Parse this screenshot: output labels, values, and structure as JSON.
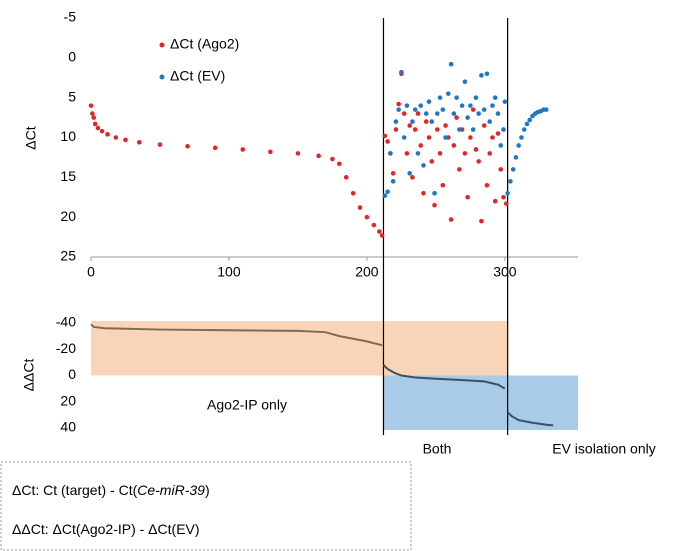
{
  "chart_data": [
    {
      "type": "scatter",
      "y_label": "ΔCt",
      "xlim": [
        0,
        353
      ],
      "ylim": [
        -5,
        25
      ],
      "y_inverted": true,
      "xticks": [
        0,
        100,
        200,
        300
      ],
      "yticks": [
        -5,
        0,
        5,
        10,
        15,
        20,
        25
      ],
      "dividers": [
        212,
        302
      ],
      "series": [
        {
          "name": "ΔCt (Ago2)",
          "color": "#e3242b",
          "x": [
            0,
            1,
            2,
            3,
            5,
            8,
            12,
            18,
            25,
            35,
            50,
            70,
            90,
            110,
            130,
            150,
            165,
            175,
            180,
            185,
            190,
            195,
            200,
            205,
            209,
            211,
            213,
            215,
            217,
            219,
            221,
            223,
            225,
            227,
            229,
            231,
            233,
            235,
            237,
            239,
            241,
            243,
            245,
            247,
            249,
            251,
            253,
            255,
            257,
            259,
            261,
            263,
            265,
            267,
            269,
            271,
            273,
            275,
            277,
            279,
            281,
            283,
            285,
            287,
            289,
            291,
            293,
            295,
            297,
            299,
            301
          ],
          "values": [
            6,
            7,
            7.5,
            8.3,
            8.8,
            9.2,
            9.6,
            10,
            10.3,
            10.6,
            10.9,
            11.1,
            11.3,
            11.5,
            11.8,
            12,
            12.3,
            12.7,
            13.3,
            15,
            17,
            18.8,
            20,
            21,
            21.8,
            22.3,
            9.8,
            10.5,
            12,
            14.5,
            9,
            5.8,
            2,
            7,
            12,
            8.5,
            15,
            9,
            7,
            11,
            17,
            8,
            10,
            13,
            18.5,
            9,
            12,
            16,
            8.5,
            10,
            20.3,
            11,
            7.5,
            14,
            9,
            12,
            17.5,
            10,
            6.5,
            11.5,
            13,
            20.5,
            8.5,
            16,
            12,
            10,
            18,
            9.5,
            14,
            17.5,
            18.3
          ]
        },
        {
          "name": "ΔCt (EV)",
          "color": "#1f77c4",
          "x": [
            213,
            215,
            217,
            219,
            221,
            223,
            225,
            227,
            229,
            231,
            233,
            235,
            237,
            239,
            241,
            243,
            245,
            247,
            249,
            251,
            253,
            255,
            257,
            259,
            261,
            263,
            265,
            267,
            269,
            271,
            273,
            275,
            277,
            279,
            281,
            283,
            285,
            287,
            289,
            291,
            293,
            295,
            297,
            299,
            300,
            302,
            304,
            306,
            308,
            310,
            312,
            314,
            316,
            318,
            320,
            322,
            324,
            326,
            328,
            330
          ],
          "values": [
            17.3,
            16.8,
            12,
            15.5,
            8,
            6.5,
            1.8,
            10,
            6,
            14.5,
            8,
            6.5,
            12,
            6,
            13.5,
            7,
            5.5,
            8,
            17,
            7,
            5,
            6.5,
            10,
            4.5,
            0.8,
            7,
            5,
            9,
            6,
            3,
            7.5,
            6,
            9,
            5,
            7,
            2.2,
            6.5,
            2,
            8,
            6,
            5,
            7,
            11,
            9,
            5.5,
            17,
            15.5,
            14,
            12.5,
            11,
            10,
            9,
            8.3,
            7.8,
            7.3,
            7,
            6.8,
            6.7,
            6.5,
            6.5
          ]
        }
      ]
    },
    {
      "type": "line",
      "y_label": "ΔΔCt",
      "xlim": [
        0,
        353
      ],
      "ylim": [
        -40,
        40
      ],
      "y_inverted": true,
      "yticks": [
        -40,
        -20,
        0,
        20,
        40
      ],
      "annotations": [
        "Ago2-IP only",
        "Both",
        "EV isolation only"
      ],
      "series": [
        {
          "color": "#7f6a55",
          "x": [
            0,
            2,
            10,
            50,
            100,
            150,
            170,
            180,
            190,
            200,
            211
          ],
          "values": [
            -39,
            -37,
            -36,
            -35,
            -34.5,
            -34,
            -33,
            -30,
            -28,
            -26,
            -23
          ]
        },
        {
          "color": "#3b5163",
          "x": [
            212,
            215,
            220,
            225,
            235,
            250,
            270,
            285,
            295,
            300
          ],
          "values": [
            -8,
            -5,
            -2,
            0,
            1.5,
            2.5,
            3.5,
            4.5,
            7,
            10
          ]
        },
        {
          "color": "#3b5163",
          "x": [
            302,
            305,
            310,
            320,
            330,
            335
          ],
          "values": [
            28,
            31,
            34,
            36,
            37.5,
            38
          ]
        }
      ]
    }
  ],
  "notes": [
    [
      "ΔCt: Ct (target) - Ct(",
      "Ce-miR-39",
      ")"
    ],
    [
      "ΔΔCt: ΔCt(Ago2-IP) - ΔCt(EV)"
    ]
  ]
}
